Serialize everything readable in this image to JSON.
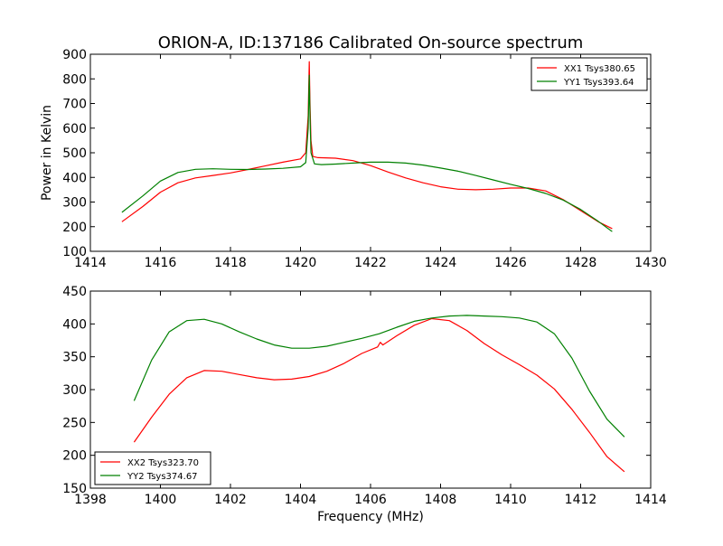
{
  "figure": {
    "title": "ORION-A, ID:137186 Calibrated On-source spectrum",
    "xlabel": "Frequency (MHz)"
  },
  "chart_data": [
    {
      "type": "line",
      "title": "ORION-A, ID:137186 Calibrated On-source spectrum",
      "xlabel": "",
      "ylabel": "Power in Kelvin",
      "xlim": [
        1414,
        1430
      ],
      "ylim": [
        100,
        900
      ],
      "xticks": [
        1414,
        1416,
        1418,
        1420,
        1422,
        1424,
        1426,
        1428,
        1430
      ],
      "yticks": [
        100,
        200,
        300,
        400,
        500,
        600,
        700,
        800,
        900
      ],
      "legend_position": "top-right",
      "grid": false,
      "series": [
        {
          "name": "XX1 Tsys380.65",
          "color": "#ff0000",
          "x": [
            1414.9,
            1415.5,
            1416.0,
            1416.5,
            1417.0,
            1417.5,
            1418.0,
            1418.5,
            1419.0,
            1419.5,
            1420.0,
            1420.15,
            1420.22,
            1420.25,
            1420.27,
            1420.3,
            1420.35,
            1420.5,
            1421.0,
            1421.5,
            1422.0,
            1422.5,
            1423.0,
            1423.5,
            1424.0,
            1424.5,
            1425.0,
            1425.5,
            1426.0,
            1426.5,
            1427.0,
            1427.5,
            1428.0,
            1428.5,
            1428.9
          ],
          "y": [
            220,
            282,
            340,
            378,
            398,
            408,
            418,
            432,
            447,
            462,
            475,
            500,
            650,
            870,
            700,
            550,
            485,
            480,
            478,
            468,
            448,
            422,
            398,
            378,
            362,
            352,
            350,
            352,
            357,
            357,
            345,
            310,
            265,
            220,
            192
          ]
        },
        {
          "name": "YY1 Tsys393.64",
          "color": "#008000",
          "x": [
            1414.9,
            1415.5,
            1416.0,
            1416.5,
            1417.0,
            1417.5,
            1418.0,
            1418.5,
            1419.0,
            1419.5,
            1420.0,
            1420.15,
            1420.22,
            1420.25,
            1420.27,
            1420.3,
            1420.4,
            1420.6,
            1421.0,
            1421.5,
            1422.0,
            1422.5,
            1423.0,
            1423.5,
            1424.0,
            1424.5,
            1425.0,
            1425.5,
            1426.0,
            1426.5,
            1427.0,
            1427.5,
            1428.0,
            1428.5,
            1428.9
          ],
          "y": [
            258,
            325,
            385,
            420,
            433,
            435,
            433,
            432,
            434,
            437,
            443,
            460,
            600,
            815,
            650,
            500,
            455,
            452,
            454,
            458,
            462,
            462,
            458,
            450,
            438,
            425,
            408,
            390,
            372,
            355,
            335,
            308,
            270,
            222,
            180
          ]
        }
      ]
    },
    {
      "type": "line",
      "title": "",
      "xlabel": "Frequency (MHz)",
      "ylabel": "",
      "xlim": [
        1398,
        1414
      ],
      "ylim": [
        150,
        450
      ],
      "xticks": [
        1398,
        1400,
        1402,
        1404,
        1406,
        1408,
        1410,
        1412,
        1414
      ],
      "yticks": [
        150,
        200,
        250,
        300,
        350,
        400,
        450
      ],
      "legend_position": "bottom-left",
      "grid": false,
      "series": [
        {
          "name": "XX2 Tsys323.70",
          "color": "#ff0000",
          "x": [
            1399.25,
            1399.75,
            1400.25,
            1400.75,
            1401.25,
            1401.75,
            1402.25,
            1402.75,
            1403.25,
            1403.75,
            1404.25,
            1404.75,
            1405.25,
            1405.75,
            1406.2,
            1406.28,
            1406.35,
            1406.75,
            1407.25,
            1407.75,
            1408.25,
            1408.75,
            1409.25,
            1409.75,
            1410.25,
            1410.75,
            1411.25,
            1411.75,
            1412.25,
            1412.75,
            1413.25
          ],
          "y": [
            220,
            258,
            293,
            318,
            329,
            328,
            323,
            318,
            315,
            316,
            320,
            328,
            340,
            355,
            365,
            372,
            368,
            382,
            398,
            408,
            405,
            390,
            370,
            353,
            338,
            322,
            301,
            270,
            235,
            198,
            175
          ]
        },
        {
          "name": "YY2 Tsys374.67",
          "color": "#008000",
          "x": [
            1399.25,
            1399.75,
            1400.25,
            1400.75,
            1401.25,
            1401.75,
            1402.25,
            1402.75,
            1403.25,
            1403.75,
            1404.25,
            1404.75,
            1405.25,
            1405.75,
            1406.25,
            1406.75,
            1407.25,
            1407.75,
            1408.25,
            1408.75,
            1409.25,
            1409.75,
            1410.25,
            1410.75,
            1411.25,
            1411.75,
            1412.25,
            1412.75,
            1413.25
          ],
          "y": [
            283,
            345,
            388,
            405,
            407,
            400,
            388,
            377,
            368,
            363,
            363,
            366,
            372,
            378,
            385,
            395,
            404,
            409,
            412,
            413,
            412,
            411,
            409,
            403,
            385,
            348,
            298,
            255,
            228
          ]
        }
      ]
    }
  ]
}
